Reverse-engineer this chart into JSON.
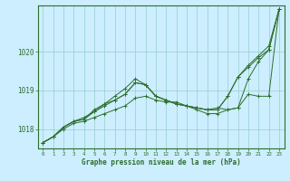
{
  "title": "Graphe pression niveau de la mer (hPa)",
  "bg_color": "#cceeff",
  "grid_color": "#99cccc",
  "line_color": "#2d6e2d",
  "x_ticks": [
    0,
    1,
    2,
    3,
    4,
    5,
    6,
    7,
    8,
    9,
    10,
    11,
    12,
    13,
    14,
    15,
    16,
    17,
    18,
    19,
    20,
    21,
    22,
    23
  ],
  "ylim": [
    1017.5,
    1021.2
  ],
  "y_ticks": [
    1018,
    1019,
    1020
  ],
  "lines": [
    [
      1017.65,
      1017.8,
      1018.0,
      1018.15,
      1018.2,
      1018.3,
      1018.4,
      1018.5,
      1018.6,
      1018.8,
      1018.85,
      1018.75,
      1018.7,
      1018.7,
      1018.6,
      1018.55,
      1018.5,
      1018.55,
      1018.5,
      1018.55,
      1019.3,
      1019.75,
      1020.05,
      1021.1
    ],
    [
      1017.65,
      1017.8,
      1018.05,
      1018.2,
      1018.3,
      1018.45,
      1018.65,
      1018.85,
      1019.05,
      1019.3,
      1019.15,
      1018.85,
      1018.75,
      1018.65,
      1018.6,
      1018.5,
      1018.4,
      1018.4,
      1018.5,
      1018.55,
      1018.9,
      1018.85,
      1018.85,
      1021.1
    ],
    [
      1017.65,
      1017.8,
      1018.05,
      1018.2,
      1018.25,
      1018.5,
      1018.65,
      1018.75,
      1018.9,
      1019.2,
      1019.15,
      1018.85,
      1018.75,
      1018.65,
      1018.6,
      1018.55,
      1018.5,
      1018.5,
      1018.85,
      1019.35,
      1019.6,
      1019.85,
      1020.05,
      1021.1
    ],
    [
      1017.65,
      1017.8,
      1018.05,
      1018.2,
      1018.25,
      1018.45,
      1018.6,
      1018.75,
      1018.9,
      1019.2,
      1019.15,
      1018.85,
      1018.75,
      1018.65,
      1018.6,
      1018.55,
      1018.5,
      1018.5,
      1018.85,
      1019.35,
      1019.65,
      1019.9,
      1020.15,
      1021.1
    ]
  ]
}
